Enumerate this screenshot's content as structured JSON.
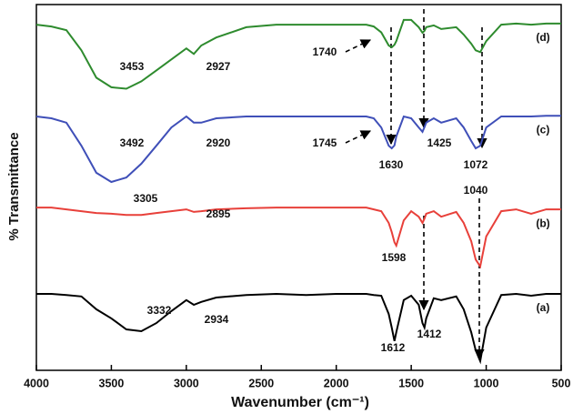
{
  "chart_data": {
    "type": "line",
    "x_label": "Wavenumber (cm⁻¹)",
    "y_label": "% Transmittance",
    "xlim": [
      4000,
      500
    ],
    "ylim": [
      0,
      100
    ],
    "xticks": [
      4000,
      3500,
      3000,
      2500,
      2000,
      1500,
      1000,
      500
    ],
    "x": [
      4000,
      3900,
      3800,
      3700,
      3600,
      3500,
      3400,
      3300,
      3200,
      3100,
      3000,
      2950,
      2900,
      2800,
      2600,
      2400,
      2200,
      2000,
      1800,
      1750,
      1700,
      1650,
      1630,
      1612,
      1600,
      1550,
      1500,
      1450,
      1425,
      1412,
      1400,
      1350,
      1300,
      1200,
      1150,
      1100,
      1070,
      1040,
      1000,
      900,
      800,
      700,
      600,
      500
    ],
    "series": [
      {
        "name": "(a)",
        "color": "#000000",
        "values": [
          20.9,
          20.9,
          20.6,
          20.2,
          16.7,
          14.2,
          11.2,
          10.7,
          12.9,
          16.2,
          19.2,
          17.9,
          18.7,
          19.9,
          20.6,
          20.9,
          20.6,
          20.9,
          20.9,
          20.6,
          20.4,
          15.4,
          11.7,
          8,
          10.4,
          19.2,
          20.4,
          17.9,
          12.9,
          11.7,
          14.2,
          19.7,
          19.2,
          20.2,
          16.7,
          10.4,
          5.5,
          2.5,
          11.7,
          20.6,
          20.9,
          20.4,
          20.9,
          20.9
        ]
      },
      {
        "name": "(b)",
        "color": "#e8403a",
        "values": [
          44.5,
          44.5,
          44,
          43.5,
          43,
          42.8,
          42.5,
          42.5,
          43,
          43.5,
          44,
          43.3,
          43.5,
          44,
          44.3,
          44.5,
          44.5,
          44.5,
          44.5,
          44,
          43.5,
          40.3,
          37.8,
          35,
          34.1,
          41,
          43.5,
          42,
          40.3,
          41.5,
          42.8,
          43.5,
          42,
          43.3,
          40.3,
          35.3,
          30.3,
          28.4,
          36.6,
          43.5,
          44,
          42.8,
          44,
          44
        ]
      },
      {
        "name": "(c)",
        "color": "#3f4fb8",
        "values": [
          69.4,
          68.9,
          67.7,
          61.4,
          54,
          51.5,
          52.7,
          56.5,
          61.4,
          66.4,
          69.4,
          67.7,
          67.7,
          68.9,
          69.4,
          69.4,
          69.4,
          69.4,
          69.4,
          68.9,
          66.4,
          61.4,
          60.7,
          61.5,
          63.9,
          69.4,
          68.9,
          66.4,
          65.2,
          66.5,
          67.7,
          68.9,
          67.7,
          68.9,
          66.4,
          62.7,
          60.7,
          61.4,
          66.4,
          69.4,
          69.4,
          69.4,
          69.6,
          69.6
        ]
      },
      {
        "name": "(d)",
        "color": "#2e8b2e",
        "values": [
          94.5,
          94,
          93,
          87.5,
          80,
          77.4,
          77,
          79,
          82,
          85,
          88,
          86.5,
          88.8,
          91,
          93.8,
          94.5,
          94.5,
          94.5,
          94.5,
          94,
          92.4,
          88.8,
          88.3,
          89,
          90,
          95.8,
          95.8,
          93.8,
          92.3,
          92.8,
          93.8,
          94.3,
          93.3,
          93.8,
          91.8,
          89.3,
          87.5,
          87,
          90,
          94.5,
          94.8,
          94.5,
          94.8,
          94.8
        ]
      }
    ],
    "annotations": [
      "3453",
      "2927",
      "1740",
      "3492",
      "2920",
      "1745",
      "1630",
      "1425",
      "1072",
      "3305",
      "2895",
      "1040",
      "1598",
      "3332",
      "2934",
      "1612",
      "1412"
    ]
  }
}
